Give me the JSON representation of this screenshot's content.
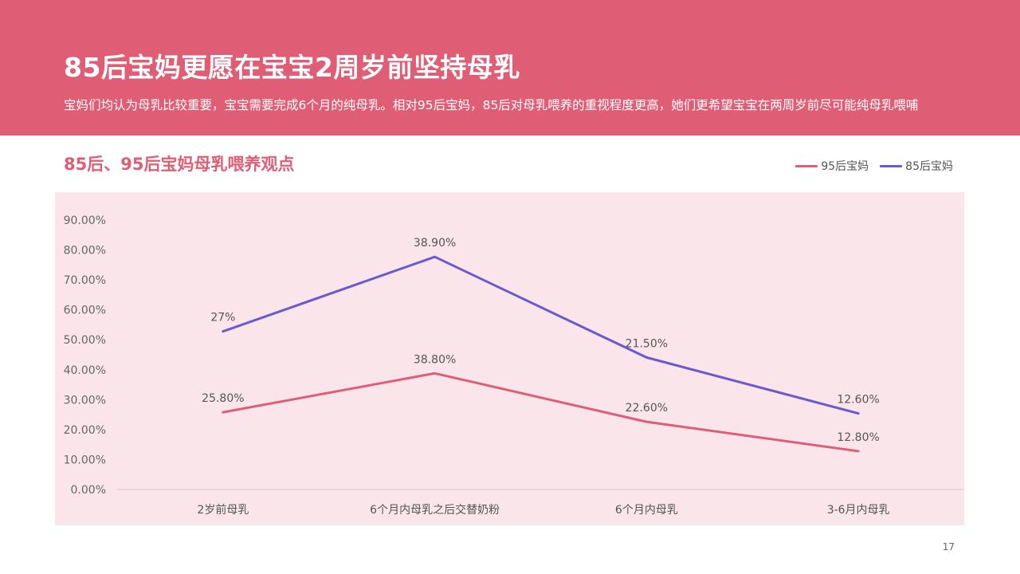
{
  "slide": {
    "title": "85后宝妈更愿在宝宝2周岁前坚持母乳",
    "subtitle": "宝妈们均认为母乳比较重要，宝宝需要完成6个月的纯母乳。相对95后宝妈，85后对母乳喂养的重视程度更高，她们更希望宝宝在两周岁前尽可能纯母乳喂哺",
    "page_number": "17",
    "accent_color": "#df5e76",
    "plot_background": "#fae6ea"
  },
  "chart_data": {
    "type": "line",
    "title": "85后、95后宝妈母乳喂养观点",
    "categories": [
      "2岁前母乳",
      "6个月内母乳之后交替奶粉",
      "6个月内母乳",
      "3-6月内母乳"
    ],
    "y_tick_labels": [
      "0.00%",
      "10.00%",
      "20.00%",
      "30.00%",
      "40.00%",
      "50.00%",
      "60.00%",
      "70.00%",
      "80.00%",
      "90.00%"
    ],
    "ylim": [
      0,
      90
    ],
    "grid": false,
    "legend_position": "top-right",
    "series": [
      {
        "name": "95后宝妈",
        "color": "#df5e76",
        "values": [
          25.8,
          38.8,
          22.6,
          12.8
        ],
        "labels": [
          "25.80%",
          "38.80%",
          "22.60%",
          "12.80%"
        ]
      },
      {
        "name": "85后宝妈",
        "color": "#6a5acd",
        "values": [
          52.8,
          77.7,
          44.1,
          25.4
        ],
        "labels": [
          "27%",
          "38.90%",
          "21.50%",
          "12.60%"
        ]
      }
    ]
  }
}
